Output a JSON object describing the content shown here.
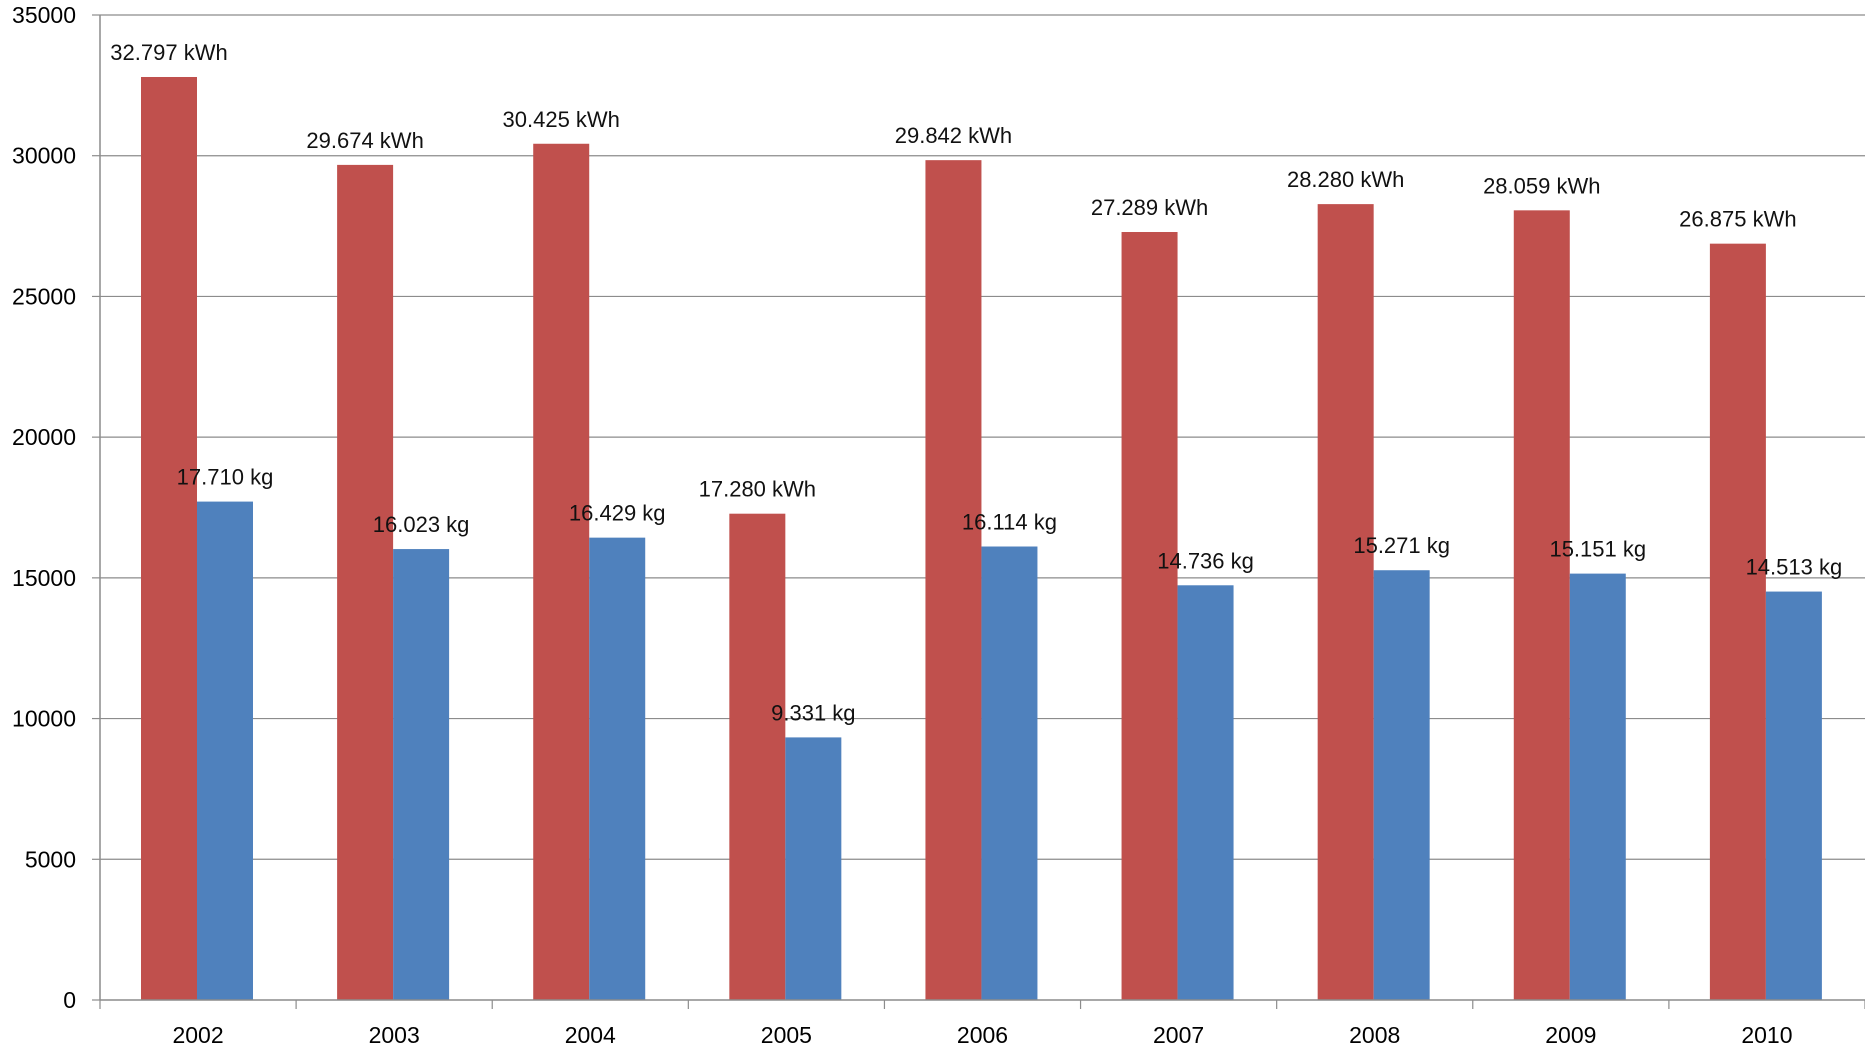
{
  "chart_data": {
    "type": "bar",
    "categories": [
      "2002",
      "2003",
      "2004",
      "2005",
      "2006",
      "2007",
      "2008",
      "2009",
      "2010"
    ],
    "series": [
      {
        "color": "#C0504D",
        "values": [
          32797,
          29674,
          30425,
          17280,
          29842,
          27289,
          28280,
          28059,
          26875
        ],
        "labels": [
          "32.797 kWh",
          "29.674 kWh",
          "30.425 kWh",
          "17.280 kWh",
          "29.842 kWh",
          "27.289 kWh",
          "28.280 kWh",
          "28.059 kWh",
          "26.875 kWh"
        ]
      },
      {
        "color": "#4F81BD",
        "values": [
          17710,
          16023,
          16429,
          9331,
          16114,
          14736,
          15271,
          15151,
          14513
        ],
        "labels": [
          "17.710 kg",
          "16.023 kg",
          "16.429 kg",
          "9.331 kg",
          "16.114 kg",
          "14.736 kg",
          "15.271 kg",
          "15.151 kg",
          "14.513 kg"
        ]
      }
    ],
    "ylim": [
      0,
      35000
    ],
    "yticks": [
      "0",
      "5000",
      "10000",
      "15000",
      "20000",
      "25000",
      "30000",
      "35000"
    ],
    "grid": true,
    "legend": "none",
    "title": "",
    "xlabel": "",
    "ylabel": ""
  }
}
